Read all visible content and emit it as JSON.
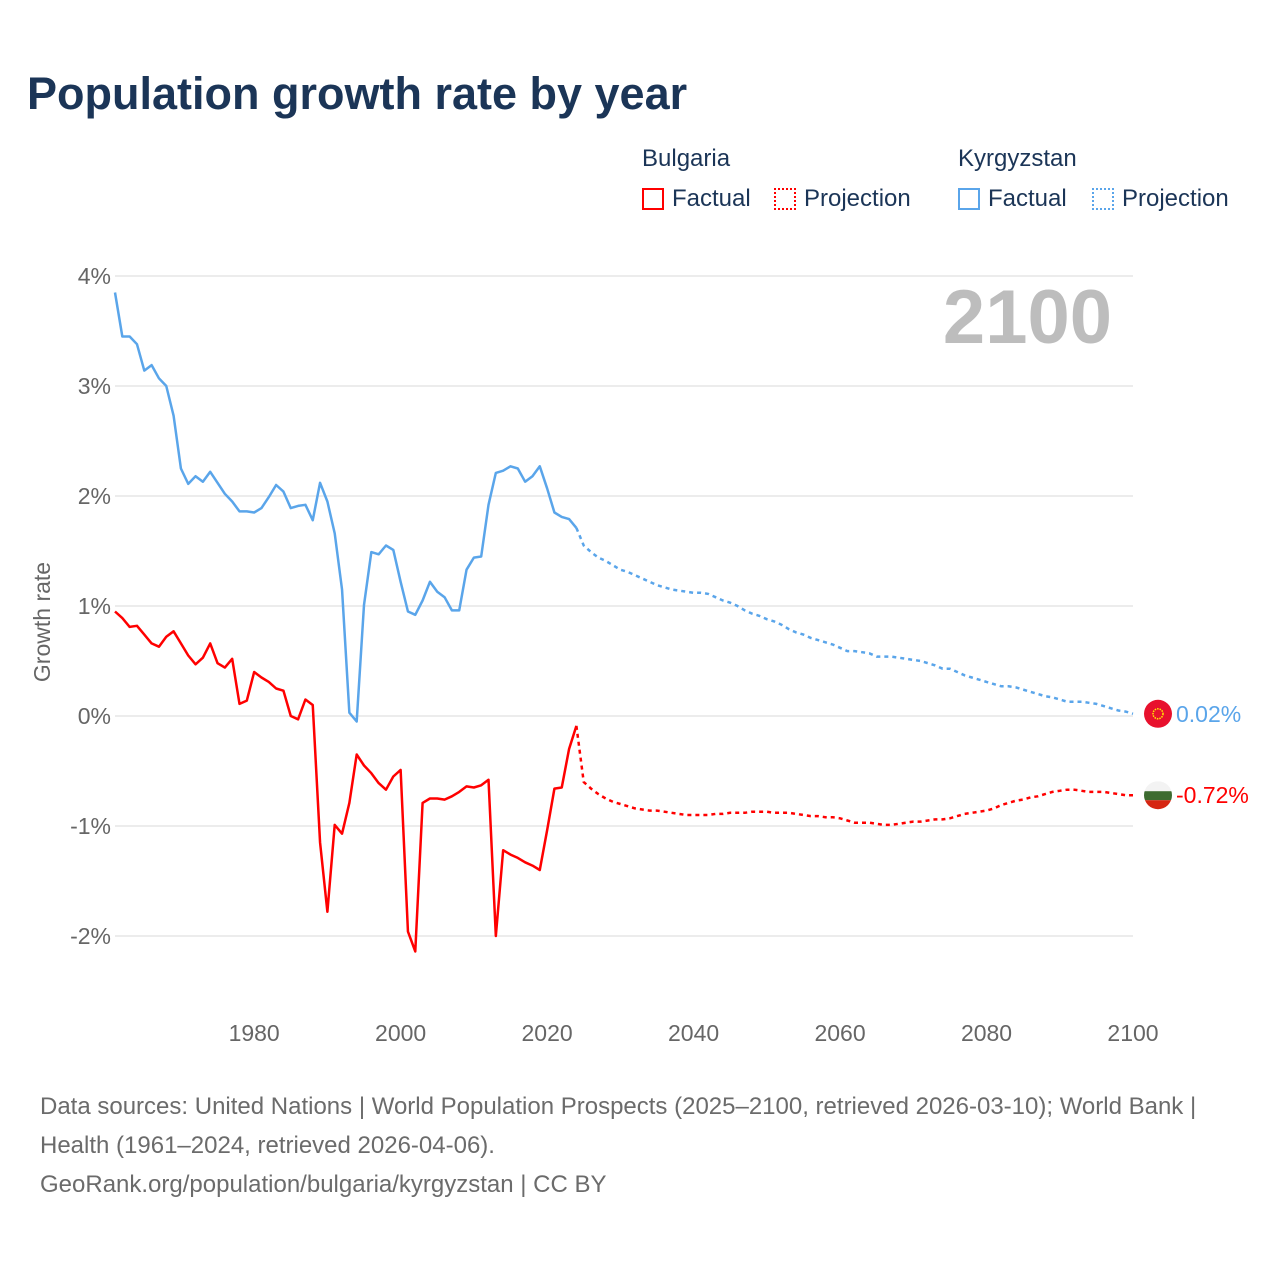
{
  "title": "Population growth rate by year",
  "legend": {
    "groups": [
      {
        "name": "Bulgaria",
        "factual_label": "Factual",
        "projection_label": "Projection",
        "color": "#ff0000"
      },
      {
        "name": "Kyrgyzstan",
        "factual_label": "Factual",
        "projection_label": "Projection",
        "color": "#5aa5ea"
      }
    ]
  },
  "year_display": "2100",
  "footer": {
    "sources": "Data sources: United Nations | World Population Prospects (2025–2100, retrieved 2026-03-10); World Bank | Health (1961–2024, retrieved 2026-04-06).",
    "credit": "GeoRank.org/population/bulgaria/kyrgyzstan | CC BY"
  },
  "chart_data": {
    "type": "line",
    "title": "Population growth rate by year",
    "xlabel": "",
    "ylabel": "Growth rate",
    "xlim": [
      1961,
      2100
    ],
    "ylim": [
      -2.5,
      4.2
    ],
    "x_ticks": [
      1980,
      2000,
      2020,
      2040,
      2060,
      2080,
      2100
    ],
    "x_tick_labels": [
      "1980",
      "2000",
      "2020",
      "2040",
      "2060",
      "2080",
      "2100"
    ],
    "y_ticks": [
      -2,
      -1,
      0,
      1,
      2,
      3,
      4
    ],
    "y_tick_labels": [
      "-2%",
      "-1%",
      "0%",
      "1%",
      "2%",
      "3%",
      "4%"
    ],
    "grid": true,
    "legend_position": "top-right",
    "series": [
      {
        "name": "Kyrgyzstan",
        "color": "#5aa5ea",
        "end_label": "0.02%",
        "factual_start_year": 1961,
        "factual": [
          3.85,
          3.45,
          3.45,
          3.38,
          3.14,
          3.19,
          3.07,
          3.0,
          2.73,
          2.25,
          2.11,
          2.18,
          2.13,
          2.22,
          2.12,
          2.02,
          1.95,
          1.86,
          1.86,
          1.85,
          1.89,
          1.99,
          2.1,
          2.04,
          1.89,
          1.91,
          1.92,
          1.78,
          2.12,
          1.95,
          1.66,
          1.15,
          0.03,
          -0.05,
          1.01,
          1.49,
          1.47,
          1.55,
          1.51,
          1.22,
          0.95,
          0.92,
          1.05,
          1.22,
          1.13,
          1.08,
          0.96,
          0.96,
          1.33,
          1.44,
          1.45,
          1.92,
          2.21,
          2.23,
          2.27,
          2.25,
          2.13,
          2.18,
          2.27,
          2.07,
          1.85,
          1.81,
          1.79,
          1.71
        ],
        "projection_start_year": 2025,
        "projection": [
          1.55,
          1.49,
          1.44,
          1.41,
          1.37,
          1.33,
          1.31,
          1.28,
          1.25,
          1.22,
          1.19,
          1.17,
          1.15,
          1.14,
          1.13,
          1.12,
          1.12,
          1.11,
          1.08,
          1.05,
          1.03,
          1.0,
          0.96,
          0.93,
          0.91,
          0.88,
          0.86,
          0.83,
          0.79,
          0.76,
          0.74,
          0.71,
          0.69,
          0.67,
          0.65,
          0.62,
          0.59,
          0.59,
          0.58,
          0.57,
          0.54,
          0.54,
          0.54,
          0.53,
          0.52,
          0.51,
          0.5,
          0.48,
          0.46,
          0.43,
          0.43,
          0.4,
          0.37,
          0.35,
          0.33,
          0.31,
          0.29,
          0.27,
          0.27,
          0.26,
          0.24,
          0.22,
          0.2,
          0.18,
          0.17,
          0.15,
          0.13,
          0.13,
          0.13,
          0.12,
          0.11,
          0.09,
          0.07,
          0.05,
          0.04,
          0.02
        ]
      },
      {
        "name": "Bulgaria",
        "color": "#ff0000",
        "end_label": "-0.72%",
        "factual_start_year": 1961,
        "factual": [
          0.95,
          0.89,
          0.81,
          0.82,
          0.74,
          0.66,
          0.63,
          0.72,
          0.77,
          0.66,
          0.55,
          0.47,
          0.53,
          0.66,
          0.48,
          0.44,
          0.52,
          0.11,
          0.14,
          0.4,
          0.35,
          0.31,
          0.25,
          0.23,
          0.0,
          -0.03,
          0.15,
          0.1,
          -1.15,
          -1.78,
          -0.99,
          -1.07,
          -0.79,
          -0.35,
          -0.45,
          -0.52,
          -0.61,
          -0.67,
          -0.55,
          -0.49,
          -1.96,
          -2.14,
          -0.79,
          -0.75,
          -0.75,
          -0.76,
          -0.73,
          -0.69,
          -0.64,
          -0.65,
          -0.63,
          -0.58,
          -2.0,
          -1.22,
          -1.26,
          -1.29,
          -1.33,
          -1.36,
          -1.4,
          -1.04,
          -0.66,
          -0.65,
          -0.3,
          -0.09
        ],
        "projection_start_year": 2025,
        "projection": [
          -0.6,
          -0.66,
          -0.71,
          -0.75,
          -0.78,
          -0.8,
          -0.82,
          -0.84,
          -0.85,
          -0.86,
          -0.86,
          -0.87,
          -0.88,
          -0.89,
          -0.9,
          -0.9,
          -0.9,
          -0.9,
          -0.89,
          -0.89,
          -0.88,
          -0.88,
          -0.88,
          -0.87,
          -0.87,
          -0.87,
          -0.88,
          -0.88,
          -0.88,
          -0.89,
          -0.9,
          -0.91,
          -0.91,
          -0.92,
          -0.92,
          -0.93,
          -0.95,
          -0.97,
          -0.97,
          -0.97,
          -0.98,
          -0.99,
          -0.99,
          -0.98,
          -0.97,
          -0.96,
          -0.96,
          -0.95,
          -0.94,
          -0.94,
          -0.93,
          -0.91,
          -0.89,
          -0.88,
          -0.87,
          -0.86,
          -0.84,
          -0.81,
          -0.79,
          -0.77,
          -0.76,
          -0.74,
          -0.73,
          -0.71,
          -0.69,
          -0.68,
          -0.67,
          -0.67,
          -0.68,
          -0.69,
          -0.69,
          -0.69,
          -0.7,
          -0.71,
          -0.72,
          -0.72
        ]
      }
    ]
  }
}
